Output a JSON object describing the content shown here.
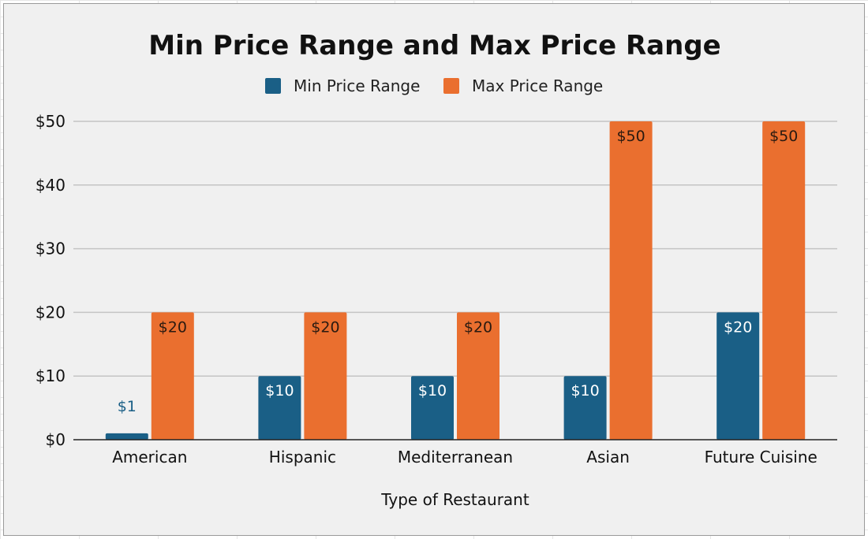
{
  "chart_data": {
    "type": "bar",
    "title": "Min Price Range and Max Price Range",
    "xlabel": "Type of Restaurant",
    "ylabel": "",
    "categories": [
      "American",
      "Hispanic",
      "Mediterranean",
      "Asian",
      "Future Cuisine"
    ],
    "series": [
      {
        "name": "Min Price Range",
        "color": "#1a5f86",
        "values": [
          1,
          10,
          10,
          10,
          20
        ],
        "labels": [
          "$1",
          "$10",
          "$10",
          "$10",
          "$20"
        ]
      },
      {
        "name": "Max Price Range",
        "color": "#ea6f2f",
        "values": [
          20,
          20,
          20,
          50,
          50
        ],
        "labels": [
          "$20",
          "$20",
          "$20",
          "$50",
          "$50"
        ]
      }
    ],
    "ylim": [
      0,
      50
    ],
    "yticks": [
      0,
      10,
      20,
      30,
      40,
      50
    ],
    "ytick_labels": [
      "$0",
      "$10",
      "$20",
      "$30",
      "$40",
      "$50"
    ],
    "grid": true,
    "legend_position": "top-center"
  }
}
